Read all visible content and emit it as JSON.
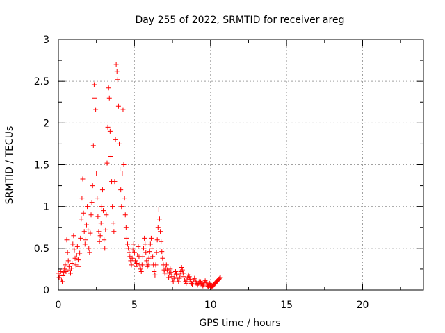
{
  "chart_data": {
    "type": "scatter",
    "title": "Day 255 of 2022, SRMTID for receiver areg",
    "xlabel": "GPS time / hours",
    "ylabel": "SRMTID / TECUs",
    "xlim": [
      0,
      24
    ],
    "ylim": [
      0,
      3
    ],
    "xticks": [
      0,
      5,
      10,
      15,
      20
    ],
    "xtick_labels": [
      "0",
      "5",
      "10",
      "15",
      "20"
    ],
    "yticks": [
      0,
      0.5,
      1,
      1.5,
      2,
      2.5,
      3
    ],
    "ytick_labels": [
      "0",
      "0.5",
      "1",
      "1.5",
      "2",
      "2.5",
      "3"
    ],
    "grid": true,
    "marker": "+",
    "marker_color": "#ff0000",
    "series": [
      {
        "name": "SRMTID",
        "points": [
          [
            0.0,
            0.2
          ],
          [
            0.05,
            0.15
          ],
          [
            0.1,
            0.18
          ],
          [
            0.15,
            0.22
          ],
          [
            0.2,
            0.12
          ],
          [
            0.25,
            0.1
          ],
          [
            0.3,
            0.17
          ],
          [
            0.35,
            0.21
          ],
          [
            0.4,
            0.25
          ],
          [
            0.45,
            0.3
          ],
          [
            0.5,
            0.22
          ],
          [
            0.55,
            0.6
          ],
          [
            0.6,
            0.45
          ],
          [
            0.65,
            0.35
          ],
          [
            0.7,
            0.28
          ],
          [
            0.75,
            0.24
          ],
          [
            0.8,
            0.2
          ],
          [
            0.85,
            0.26
          ],
          [
            0.9,
            0.32
          ],
          [
            0.95,
            0.55
          ],
          [
            1.0,
            0.65
          ],
          [
            1.05,
            0.48
          ],
          [
            1.1,
            0.38
          ],
          [
            1.15,
            0.3
          ],
          [
            1.2,
            0.42
          ],
          [
            1.25,
            0.52
          ],
          [
            1.3,
            0.36
          ],
          [
            1.35,
            0.28
          ],
          [
            1.4,
            0.44
          ],
          [
            1.45,
            0.62
          ],
          [
            1.5,
            0.85
          ],
          [
            1.55,
            1.1
          ],
          [
            1.6,
            1.33
          ],
          [
            1.65,
            0.92
          ],
          [
            1.7,
            0.7
          ],
          [
            1.75,
            0.55
          ],
          [
            1.8,
            0.6
          ],
          [
            1.85,
            0.78
          ],
          [
            1.9,
            1.0
          ],
          [
            1.95,
            0.72
          ],
          [
            2.0,
            0.5
          ],
          [
            2.05,
            0.45
          ],
          [
            2.1,
            0.68
          ],
          [
            2.15,
            0.9
          ],
          [
            2.2,
            1.05
          ],
          [
            2.25,
            1.25
          ],
          [
            2.3,
            1.73
          ],
          [
            2.35,
            2.46
          ],
          [
            2.4,
            2.3
          ],
          [
            2.45,
            2.16
          ],
          [
            2.5,
            1.4
          ],
          [
            2.55,
            1.1
          ],
          [
            2.6,
            0.88
          ],
          [
            2.65,
            0.7
          ],
          [
            2.7,
            0.58
          ],
          [
            2.75,
            0.65
          ],
          [
            2.8,
            0.8
          ],
          [
            2.85,
            1.0
          ],
          [
            2.9,
            1.2
          ],
          [
            2.95,
            0.95
          ],
          [
            3.0,
            0.6
          ],
          [
            3.05,
            0.5
          ],
          [
            3.1,
            0.72
          ],
          [
            3.15,
            0.9
          ],
          [
            3.2,
            1.52
          ],
          [
            3.25,
            1.95
          ],
          [
            3.3,
            2.42
          ],
          [
            3.35,
            2.3
          ],
          [
            3.4,
            1.9
          ],
          [
            3.45,
            1.6
          ],
          [
            3.5,
            1.3
          ],
          [
            3.55,
            1.0
          ],
          [
            3.6,
            0.8
          ],
          [
            3.65,
            0.7
          ],
          [
            3.7,
            1.3
          ],
          [
            3.75,
            1.8
          ],
          [
            3.8,
            2.7
          ],
          [
            3.85,
            2.62
          ],
          [
            3.9,
            2.52
          ],
          [
            3.95,
            2.2
          ],
          [
            4.0,
            1.75
          ],
          [
            4.05,
            1.45
          ],
          [
            4.1,
            1.2
          ],
          [
            4.15,
            1.0
          ],
          [
            4.2,
            1.4
          ],
          [
            4.25,
            2.16
          ],
          [
            4.3,
            1.5
          ],
          [
            4.35,
            1.1
          ],
          [
            4.4,
            0.9
          ],
          [
            4.45,
            0.75
          ],
          [
            4.5,
            0.62
          ],
          [
            4.55,
            0.55
          ],
          [
            4.6,
            0.5
          ],
          [
            4.65,
            0.45
          ],
          [
            4.7,
            0.4
          ],
          [
            4.75,
            0.35
          ],
          [
            4.8,
            0.3
          ],
          [
            4.85,
            0.38
          ],
          [
            4.9,
            0.48
          ],
          [
            4.95,
            0.55
          ],
          [
            5.0,
            0.45
          ],
          [
            5.05,
            0.35
          ],
          [
            5.1,
            0.28
          ],
          [
            5.15,
            0.32
          ],
          [
            5.2,
            0.42
          ],
          [
            5.25,
            0.52
          ],
          [
            5.3,
            0.4
          ],
          [
            5.35,
            0.3
          ],
          [
            5.4,
            0.25
          ],
          [
            5.45,
            0.22
          ],
          [
            5.5,
            0.3
          ],
          [
            5.55,
            0.4
          ],
          [
            5.6,
            0.5
          ],
          [
            5.65,
            0.62
          ],
          [
            5.7,
            0.55
          ],
          [
            5.75,
            0.45
          ],
          [
            5.8,
            0.35
          ],
          [
            5.85,
            0.28
          ],
          [
            5.9,
            0.3
          ],
          [
            5.95,
            0.38
          ],
          [
            6.0,
            0.46
          ],
          [
            6.05,
            0.55
          ],
          [
            6.1,
            0.62
          ],
          [
            6.15,
            0.5
          ],
          [
            6.2,
            0.4
          ],
          [
            6.25,
            0.3
          ],
          [
            6.3,
            0.22
          ],
          [
            6.35,
            0.18
          ],
          [
            6.4,
            0.3
          ],
          [
            6.45,
            0.45
          ],
          [
            6.5,
            0.6
          ],
          [
            6.55,
            0.75
          ],
          [
            6.6,
            0.96
          ],
          [
            6.65,
            0.85
          ],
          [
            6.7,
            0.7
          ],
          [
            6.75,
            0.58
          ],
          [
            6.8,
            0.46
          ],
          [
            6.85,
            0.38
          ],
          [
            6.9,
            0.3
          ],
          [
            6.95,
            0.24
          ],
          [
            7.0,
            0.2
          ],
          [
            7.05,
            0.26
          ],
          [
            7.1,
            0.3
          ],
          [
            7.15,
            0.24
          ],
          [
            7.2,
            0.18
          ],
          [
            7.25,
            0.15
          ],
          [
            7.3,
            0.2
          ],
          [
            7.35,
            0.25
          ],
          [
            7.4,
            0.21
          ],
          [
            7.45,
            0.16
          ],
          [
            7.5,
            0.12
          ],
          [
            7.55,
            0.1
          ],
          [
            7.6,
            0.14
          ],
          [
            7.65,
            0.18
          ],
          [
            7.7,
            0.22
          ],
          [
            7.75,
            0.19
          ],
          [
            7.8,
            0.15
          ],
          [
            7.85,
            0.12
          ],
          [
            7.9,
            0.1
          ],
          [
            7.95,
            0.14
          ],
          [
            8.0,
            0.18
          ],
          [
            8.05,
            0.22
          ],
          [
            8.1,
            0.27
          ],
          [
            8.15,
            0.24
          ],
          [
            8.2,
            0.2
          ],
          [
            8.25,
            0.16
          ],
          [
            8.3,
            0.12
          ],
          [
            8.35,
            0.1
          ],
          [
            8.4,
            0.08
          ],
          [
            8.45,
            0.12
          ],
          [
            8.5,
            0.15
          ],
          [
            8.55,
            0.18
          ],
          [
            8.6,
            0.16
          ],
          [
            8.65,
            0.13
          ],
          [
            8.7,
            0.1
          ],
          [
            8.75,
            0.08
          ],
          [
            8.8,
            0.07
          ],
          [
            8.85,
            0.1
          ],
          [
            8.9,
            0.12
          ],
          [
            8.95,
            0.14
          ],
          [
            9.0,
            0.12
          ],
          [
            9.05,
            0.1
          ],
          [
            9.1,
            0.08
          ],
          [
            9.15,
            0.06
          ],
          [
            9.2,
            0.08
          ],
          [
            9.25,
            0.1
          ],
          [
            9.3,
            0.12
          ],
          [
            9.35,
            0.1
          ],
          [
            9.4,
            0.08
          ],
          [
            9.45,
            0.06
          ],
          [
            9.5,
            0.05
          ],
          [
            9.55,
            0.07
          ],
          [
            9.6,
            0.09
          ],
          [
            9.65,
            0.11
          ],
          [
            9.7,
            0.09
          ],
          [
            9.75,
            0.07
          ],
          [
            9.8,
            0.05
          ],
          [
            9.85,
            0.04
          ],
          [
            9.9,
            0.06
          ],
          [
            9.95,
            0.08
          ],
          [
            10.0,
            0.05
          ],
          [
            10.05,
            0.03
          ],
          [
            10.1,
            0.04
          ],
          [
            10.15,
            0.05
          ],
          [
            10.2,
            0.06
          ],
          [
            10.25,
            0.07
          ],
          [
            10.3,
            0.08
          ],
          [
            10.35,
            0.09
          ],
          [
            10.4,
            0.1
          ],
          [
            10.45,
            0.11
          ],
          [
            10.5,
            0.12
          ],
          [
            10.55,
            0.13
          ],
          [
            10.6,
            0.14
          ],
          [
            10.65,
            0.15
          ]
        ]
      }
    ]
  }
}
